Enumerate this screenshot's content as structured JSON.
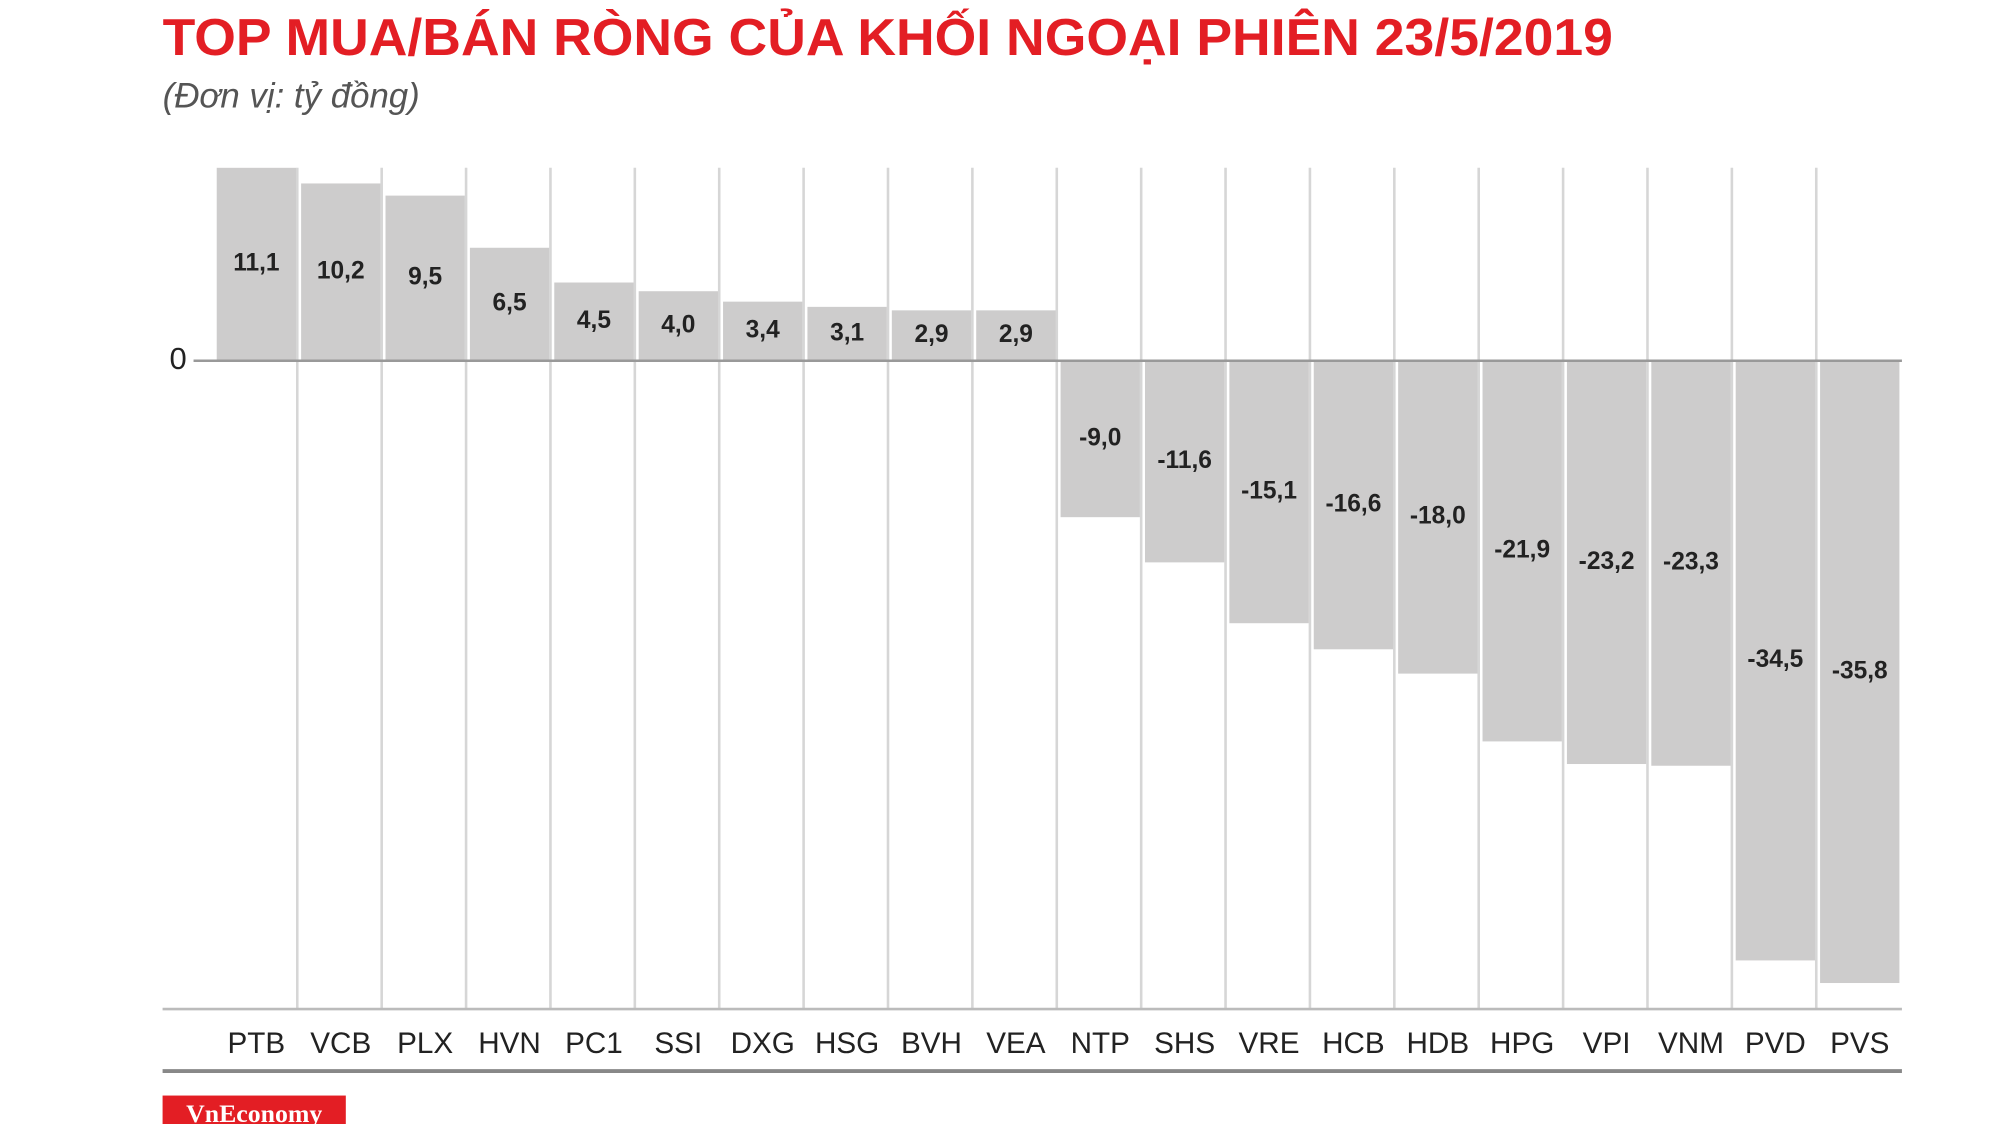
{
  "chart_data": {
    "type": "bar",
    "title": "TOP MUA/BÁN RÒNG CỦA KHỐI NGOẠI PHIÊN 23/5/2019",
    "subtitle": "(Đơn vị: tỷ đồng)",
    "source": "VnEconomy",
    "categories": [
      "PTB",
      "VCB",
      "PLX",
      "HVN",
      "PC1",
      "SSI",
      "DXG",
      "HSG",
      "BVH",
      "VEA",
      "NTP",
      "SHS",
      "VRE",
      "HCB",
      "HDB",
      "HPG",
      "VPI",
      "VNM",
      "PVD",
      "PVS"
    ],
    "values": [
      11.1,
      10.2,
      9.5,
      6.5,
      4.5,
      4.0,
      3.4,
      3.1,
      2.9,
      2.9,
      -9.0,
      -11.6,
      -15.1,
      -16.6,
      -18.0,
      -21.9,
      -23.2,
      -23.3,
      -34.5,
      -35.8
    ],
    "value_labels": [
      "11,1",
      "10,2",
      "9,5",
      "6,5",
      "4,5",
      "4,0",
      "3,4",
      "3,1",
      "2,9",
      "2,9",
      "-9,0",
      "-11,6",
      "-15,1",
      "-16,6",
      "-18,0",
      "-21,9",
      "-23,2",
      "-23,3",
      "-34,5",
      "-35,8"
    ],
    "color": "#cdcccc",
    "ylim": [
      -37.3,
      11.1
    ],
    "yticks": [
      0
    ],
    "grid": true
  }
}
